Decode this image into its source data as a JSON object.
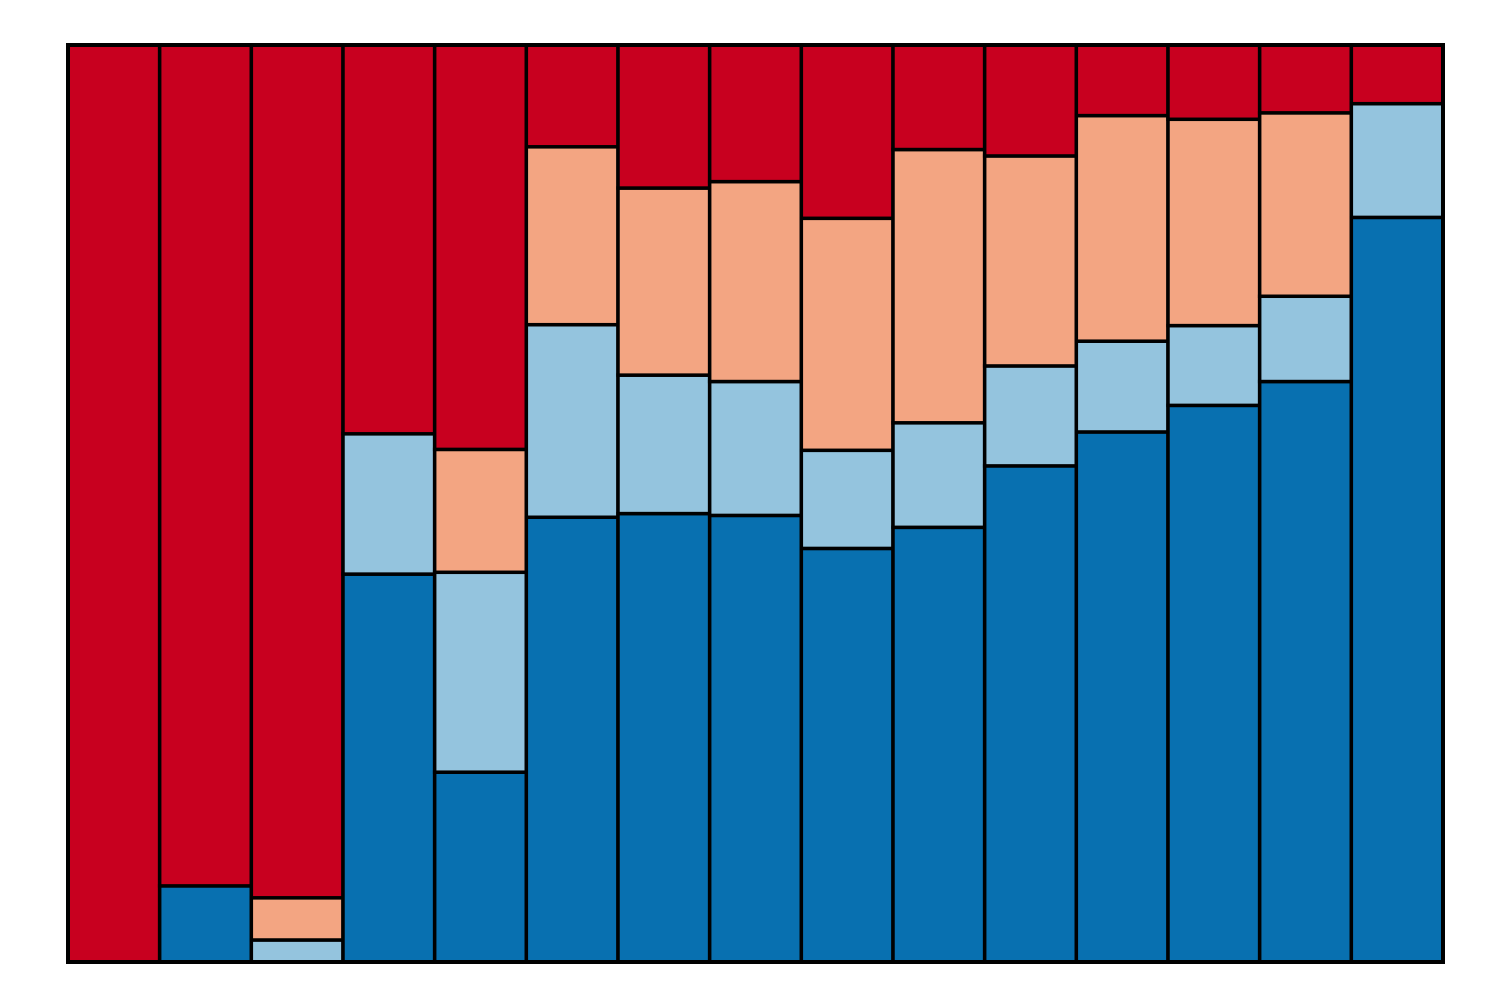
{
  "chart_data": {
    "type": "bar",
    "stacked": true,
    "normalized": true,
    "title": "",
    "xlabel": "",
    "ylabel": "",
    "ylim": [
      0,
      1
    ],
    "grid": false,
    "legend": "none",
    "categories": [
      "",
      "",
      "",
      "",
      "",
      "",
      "",
      "",
      "",
      "",
      "",
      "",
      "",
      "",
      ""
    ],
    "series": [
      {
        "color": "#0870b0",
        "values": [
          0.0,
          0.083,
          0.0,
          0.423,
          0.207,
          0.485,
          0.489,
          0.487,
          0.451,
          0.474,
          0.541,
          0.578,
          0.607,
          0.633,
          0.812
        ]
      },
      {
        "color": "#94c4de",
        "values": [
          0.0,
          0.0,
          0.024,
          0.153,
          0.218,
          0.21,
          0.151,
          0.146,
          0.107,
          0.114,
          0.109,
          0.099,
          0.087,
          0.093,
          0.124
        ]
      },
      {
        "color": "#f3a582",
        "values": [
          0.0,
          0.0,
          0.046,
          0.0,
          0.134,
          0.194,
          0.204,
          0.218,
          0.253,
          0.298,
          0.229,
          0.246,
          0.225,
          0.2,
          0.0
        ]
      },
      {
        "color": "#c8001f",
        "values": [
          1.0,
          0.917,
          0.93,
          0.424,
          0.441,
          0.111,
          0.156,
          0.149,
          0.189,
          0.114,
          0.121,
          0.077,
          0.081,
          0.074,
          0.064
        ]
      }
    ]
  }
}
